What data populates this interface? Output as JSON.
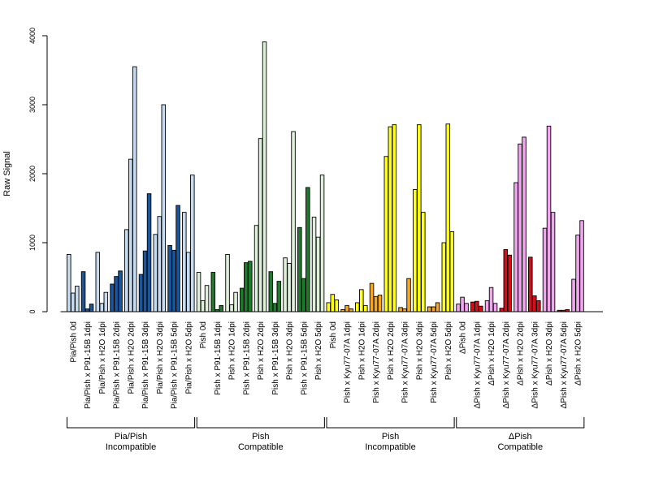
{
  "chart_data": {
    "type": "bar",
    "ylabel": "Raw Signal",
    "ylim": [
      0,
      4000
    ],
    "yticks": [
      0,
      1000,
      2000,
      3000,
      4000
    ],
    "group_colors": {
      "pia_pish_incompatible": {
        "fill": "#c6dbef",
        "dark": "#1a569c"
      },
      "pish_compatible": {
        "fill": "#dff0da",
        "dark": "#1f7a2e"
      },
      "pish_incompatible": {
        "fill": "#ffff1a",
        "dark": "#f5a623"
      },
      "dpish_compatible": {
        "fill": "#f2a6f0",
        "dark": "#d0101a"
      }
    },
    "categories": [
      {
        "label": "Pia/Pish 0d",
        "values": [
          830,
          270,
          370
        ],
        "color": "pia_pish_incompatible"
      },
      {
        "label": "Pia/Pish x P91-15B 1dpi",
        "values": [
          580,
          40,
          110
        ],
        "color": "pia_pish_incompatible",
        "dark": true
      },
      {
        "label": "Pia/Pish x H2O 1dpi",
        "values": [
          860,
          120,
          280
        ],
        "color": "pia_pish_incompatible"
      },
      {
        "label": "Pia/Pish x P91-15B 2dpi",
        "values": [
          400,
          510,
          590
        ],
        "color": "pia_pish_incompatible",
        "dark": true
      },
      {
        "label": "Pia/Pish x H2O 2dpi",
        "values": [
          1190,
          2210,
          3550
        ],
        "color": "pia_pish_incompatible"
      },
      {
        "label": "Pia/Pish x P91-15B 3dpi",
        "values": [
          540,
          880,
          1710
        ],
        "color": "pia_pish_incompatible",
        "dark": true
      },
      {
        "label": "Pia/Pish x H2O 3dpi",
        "values": [
          1120,
          1380,
          3000
        ],
        "color": "pia_pish_incompatible"
      },
      {
        "label": "Pia/Pish x P91-15B 5dpi",
        "values": [
          960,
          890,
          1540
        ],
        "color": "pia_pish_incompatible",
        "dark": true
      },
      {
        "label": "Pia/Pish x H2O 5dpi",
        "values": [
          1440,
          860,
          1980
        ],
        "color": "pia_pish_incompatible"
      },
      {
        "label": "Pish 0d",
        "values": [
          570,
          160,
          380
        ],
        "color": "pish_compatible"
      },
      {
        "label": "Pish x P91-15B 1dpi",
        "values": [
          570,
          30,
          90
        ],
        "color": "pish_compatible",
        "dark": true
      },
      {
        "label": "Pish x H2O 1dpi",
        "values": [
          830,
          100,
          280
        ],
        "color": "pish_compatible"
      },
      {
        "label": "Pish x P91-15B 2dpi",
        "values": [
          340,
          710,
          730
        ],
        "color": "pish_compatible",
        "dark": true
      },
      {
        "label": "Pish x H2O 2dpi",
        "values": [
          1250,
          2510,
          3910
        ],
        "color": "pish_compatible"
      },
      {
        "label": "Pish x P91-15B 3dpi",
        "values": [
          580,
          120,
          440
        ],
        "color": "pish_compatible",
        "dark": true
      },
      {
        "label": "Pish x H2O 3dpi",
        "values": [
          780,
          700,
          2610
        ],
        "color": "pish_compatible"
      },
      {
        "label": "Pish x P91-15B 5dpi",
        "values": [
          1220,
          480,
          1800
        ],
        "color": "pish_compatible",
        "dark": true
      },
      {
        "label": "Pish x H2O 5dpi",
        "values": [
          1370,
          1080,
          1980
        ],
        "color": "pish_compatible"
      },
      {
        "label": "Pish 0d",
        "values": [
          130,
          250,
          170
        ],
        "color": "pish_incompatible"
      },
      {
        "label": "Pish x Kyu77-07A 1dpi",
        "values": [
          30,
          90,
          40
        ],
        "color": "pish_incompatible",
        "dark": true
      },
      {
        "label": "Pish x H2O 1dpi",
        "values": [
          130,
          320,
          90
        ],
        "color": "pish_incompatible"
      },
      {
        "label": "Pish x Kyu77-07A 2dpi",
        "values": [
          410,
          220,
          240
        ],
        "color": "pish_incompatible",
        "dark": true
      },
      {
        "label": "Pish x H2O 2dpi",
        "values": [
          2250,
          2680,
          2710
        ],
        "color": "pish_incompatible"
      },
      {
        "label": "Pish x Kyu77-07A 3dpi",
        "values": [
          60,
          40,
          480
        ],
        "color": "pish_incompatible",
        "dark": true
      },
      {
        "label": "Pish x H2O 3dpi",
        "values": [
          1770,
          2710,
          1440
        ],
        "color": "pish_incompatible"
      },
      {
        "label": "Pish x Kyu77-07A 5dpi",
        "values": [
          70,
          70,
          130
        ],
        "color": "pish_incompatible",
        "dark": true
      },
      {
        "label": "Pish x H2O 5dpi",
        "values": [
          1000,
          2720,
          1160
        ],
        "color": "pish_incompatible"
      },
      {
        "label": "ΔPish 0d",
        "values": [
          110,
          210,
          120
        ],
        "color": "dpish_compatible"
      },
      {
        "label": "ΔPish x Kyu77-07A 1dpi",
        "values": [
          140,
          150,
          80
        ],
        "color": "dpish_compatible",
        "dark": true
      },
      {
        "label": "ΔPish x H2O 1dpi",
        "values": [
          160,
          350,
          120
        ],
        "color": "dpish_compatible"
      },
      {
        "label": "ΔPish x Kyu77-07A 2dpi",
        "values": [
          50,
          900,
          820
        ],
        "color": "dpish_compatible",
        "dark": true
      },
      {
        "label": "ΔPish x H2O 2dpi",
        "values": [
          1870,
          2430,
          2530
        ],
        "color": "dpish_compatible"
      },
      {
        "label": "ΔPish x Kyu77-07A 3dpi",
        "values": [
          790,
          230,
          160
        ],
        "color": "dpish_compatible",
        "dark": true
      },
      {
        "label": "ΔPish x H2O 3dpi",
        "values": [
          1210,
          2690,
          1440
        ],
        "color": "dpish_compatible"
      },
      {
        "label": "ΔPish x Kyu77-07A 5dpi",
        "values": [
          20,
          20,
          30
        ],
        "color": "dpish_compatible",
        "dark": true
      },
      {
        "label": "ΔPish x H2O 5dpi",
        "values": [
          470,
          1110,
          1320
        ],
        "color": "dpish_compatible"
      }
    ],
    "groups": [
      {
        "line1": "Pia/Pish",
        "line2": "Incompatible",
        "start": 0,
        "end": 8
      },
      {
        "line1": "Pish",
        "line2": "Compatible",
        "start": 9,
        "end": 17
      },
      {
        "line1": "Pish",
        "line2": "Incompatible",
        "start": 18,
        "end": 26
      },
      {
        "line1": "ΔPish",
        "line2": "Compatible",
        "start": 27,
        "end": 35
      }
    ]
  }
}
